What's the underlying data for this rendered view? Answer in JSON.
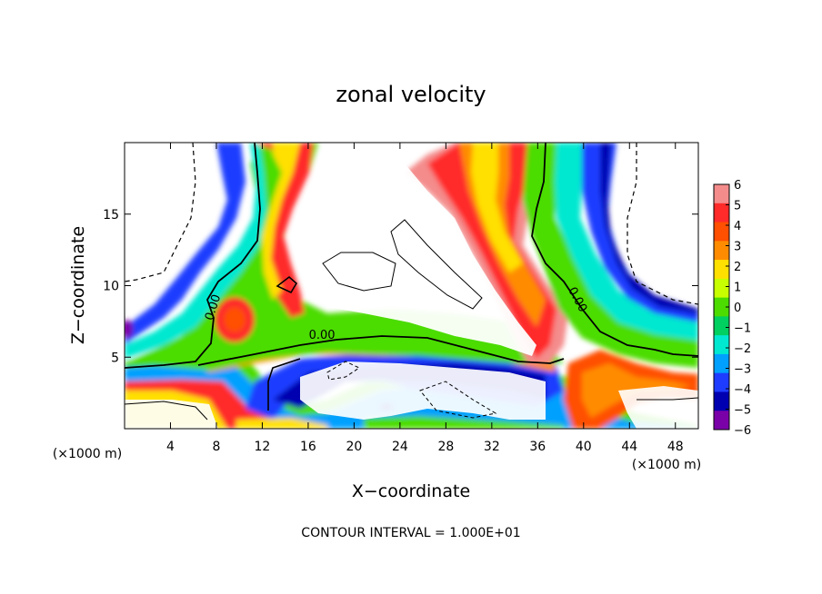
{
  "chart_data": {
    "type": "heatmap",
    "title": "zonal velocity",
    "xlabel": "X−coordinate",
    "ylabel": "Z−coordinate",
    "x_unit_left": "(×1000 m)",
    "x_unit_right": "(×1000 m)",
    "footer": "CONTOUR INTERVAL = 1.000E+01",
    "xlim": [
      0,
      50
    ],
    "ylim": [
      0,
      20
    ],
    "x_ticks": [
      4,
      8,
      12,
      16,
      20,
      24,
      28,
      32,
      36,
      40,
      44,
      48
    ],
    "y_ticks": [
      5,
      10,
      15
    ],
    "colorbar": {
      "levels": [
        6,
        5,
        4,
        3,
        2,
        1,
        0,
        -1,
        -2,
        -3,
        -4,
        -5,
        -6
      ],
      "colors": [
        "#f48c8c",
        "#ff2a2a",
        "#ff4f00",
        "#ff8c00",
        "#ffe000",
        "#c8ff00",
        "#4cdc00",
        "#00d060",
        "#00e8d0",
        "#00a0ff",
        "#1e3cff",
        "#0000b0",
        "#7a00a8"
      ]
    },
    "contour_labels": [
      {
        "text": "0.00",
        "x": 8,
        "y": 8.4,
        "rotate": -72
      },
      {
        "text": "0.00",
        "x": 17.2,
        "y": 6.3,
        "rotate": 0
      },
      {
        "text": "0.00",
        "x": 39.2,
        "y": 8.9,
        "rotate": 62
      }
    ]
  }
}
